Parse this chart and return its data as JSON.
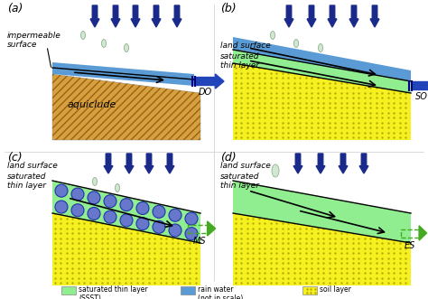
{
  "bg_color": "#ffffff",
  "soil_yellow": "#f5f020",
  "soil_dot": "#b8a800",
  "aqui_base": "#d4a040",
  "aqui_hatch": "#a06010",
  "blue_layer": "#5b9bd5",
  "green_layer": "#90ee90",
  "rain_drop_fill": "#d0e8d0",
  "rain_drop_edge": "#90b090",
  "rain_arrow": "#1a2a8a",
  "flow_arrow_blue": "#2244bb",
  "flow_arrow_green": "#44aa22",
  "flow_line": "#000000",
  "circle_fill": "#6677cc",
  "circle_edge": "#2233aa",
  "label_color": "#000000",
  "panel_a": {
    "label": "(a)",
    "sub_label1": "impermeable",
    "sub_label2": "surface",
    "aqui_label": "aquiclude",
    "out_label": "DO"
  },
  "panel_b": {
    "label": "(b)",
    "sub_label1": "land surface",
    "sub_label2": "saturated",
    "sub_label3": "thin layer",
    "out_label": "SO"
  },
  "panel_c": {
    "label": "(c)",
    "sub_label1": "land surface",
    "sub_label2": "saturated",
    "sub_label3": "thin layer",
    "out_label": "MS"
  },
  "panel_d": {
    "label": "(d)",
    "sub_label1": "land surface",
    "sub_label2": "saturated",
    "sub_label3": "thin layer",
    "out_label": "ES"
  },
  "legend": {
    "green_label": "saturated thin layer\n(SSST)",
    "blue_label": "rain water\n(not in scale)",
    "soil_label": "soil layer"
  }
}
